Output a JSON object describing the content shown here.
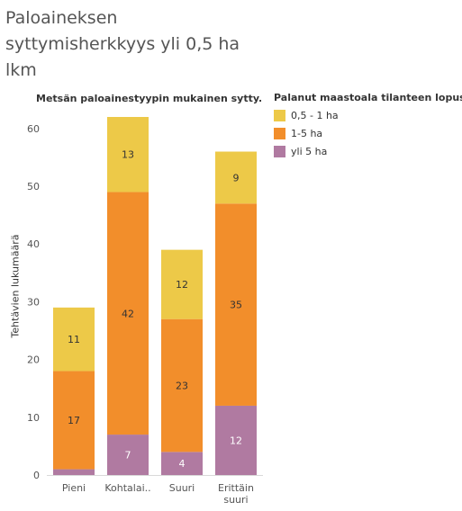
{
  "title_lines": [
    "Paloaineksen",
    "syttymisherkkyys yli 0,5 ha",
    "lkm"
  ],
  "legend": {
    "title": "Palanut maastoala tilanteen lopussa",
    "items": [
      {
        "label": "0,5 - 1 ha",
        "color": "#EDC948"
      },
      {
        "label": "1-5 ha",
        "color": "#F28E2B"
      },
      {
        "label": "yli 5 ha",
        "color": "#B07AA1"
      }
    ]
  },
  "chart_data": {
    "type": "bar",
    "stacked": true,
    "title": "Metsän paloainestyypin mukainen sytty..",
    "ylabel": "Tehtävien lukumäärä",
    "xlabel": "",
    "categories": [
      [
        "Pieni"
      ],
      [
        "Kohtalai.."
      ],
      [
        "Suuri"
      ],
      [
        "Erittäin",
        "suuri"
      ]
    ],
    "ylim": [
      0,
      62
    ],
    "yticks": [
      0,
      10,
      20,
      30,
      40,
      50,
      60
    ],
    "grid": false,
    "legend_position": "right",
    "series": [
      {
        "name": "yli 5 ha",
        "color": "#B07AA1",
        "values": [
          1,
          7,
          4,
          12
        ],
        "labels": [
          "",
          "7",
          "4",
          "12"
        ]
      },
      {
        "name": "1-5 ha",
        "color": "#F28E2B",
        "values": [
          17,
          42,
          23,
          35
        ],
        "labels": [
          "17",
          "42",
          "23",
          "35"
        ]
      },
      {
        "name": "0,5 - 1 ha",
        "color": "#EDC948",
        "values": [
          11,
          13,
          12,
          9
        ],
        "labels": [
          "11",
          "13",
          "12",
          "9"
        ]
      }
    ]
  }
}
